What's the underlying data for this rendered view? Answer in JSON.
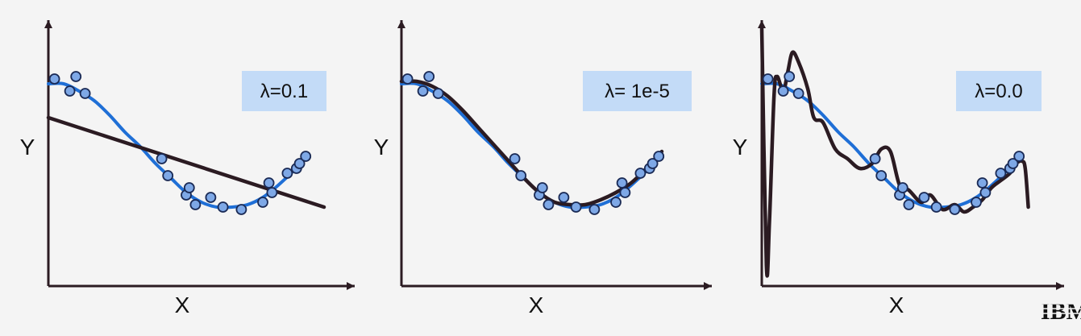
{
  "colors": {
    "background": "#f4f4f4",
    "axis": "#2b1b22",
    "truth_curve": "#1f6fd6",
    "fit_curve": "#2b1b22",
    "point_fill": "#7ea8e6",
    "point_stroke": "#1a2a55",
    "label_box": "#c3dbf7"
  },
  "chart_data": [
    {
      "type": "scatter",
      "title": "",
      "annotation": "λ=0.1",
      "xlabel": "X",
      "ylabel": "Y",
      "xlim": [
        0,
        1
      ],
      "ylim": [
        0,
        1
      ],
      "grid": false,
      "points": {
        "x": [
          0.02,
          0.09,
          0.07,
          0.12,
          0.37,
          0.39,
          0.45,
          0.46,
          0.48,
          0.53,
          0.57,
          0.63,
          0.7,
          0.72,
          0.73,
          0.78,
          0.81,
          0.82,
          0.84
        ],
        "y": [
          0.79,
          0.8,
          0.74,
          0.73,
          0.46,
          0.39,
          0.31,
          0.34,
          0.27,
          0.3,
          0.26,
          0.25,
          0.28,
          0.36,
          0.32,
          0.4,
          0.42,
          0.44,
          0.47
        ]
      },
      "series": [
        {
          "role": "underlying",
          "x": [
            0,
            0.05,
            0.1,
            0.15,
            0.2,
            0.25,
            0.3,
            0.35,
            0.4,
            0.45,
            0.5,
            0.55,
            0.6,
            0.65,
            0.7,
            0.75,
            0.8,
            0.85
          ],
          "y": [
            0.77,
            0.77,
            0.74,
            0.7,
            0.64,
            0.57,
            0.51,
            0.44,
            0.38,
            0.32,
            0.28,
            0.26,
            0.26,
            0.27,
            0.3,
            0.35,
            0.41,
            0.48
          ]
        },
        {
          "role": "fit",
          "x": [
            0,
            0.9
          ],
          "y": [
            0.63,
            0.26
          ]
        }
      ]
    },
    {
      "type": "scatter",
      "title": "",
      "annotation": "λ= 1e-5",
      "xlabel": "X",
      "ylabel": "Y",
      "xlim": [
        0,
        1
      ],
      "ylim": [
        0,
        1
      ],
      "grid": false,
      "points": {
        "x": [
          0.02,
          0.09,
          0.07,
          0.12,
          0.37,
          0.39,
          0.45,
          0.46,
          0.48,
          0.53,
          0.57,
          0.63,
          0.7,
          0.72,
          0.73,
          0.78,
          0.81,
          0.82,
          0.84
        ],
        "y": [
          0.79,
          0.8,
          0.74,
          0.73,
          0.46,
          0.39,
          0.31,
          0.34,
          0.27,
          0.3,
          0.26,
          0.25,
          0.28,
          0.36,
          0.32,
          0.4,
          0.42,
          0.44,
          0.47
        ]
      },
      "series": [
        {
          "role": "underlying",
          "x": [
            0,
            0.05,
            0.1,
            0.15,
            0.2,
            0.25,
            0.3,
            0.35,
            0.4,
            0.45,
            0.5,
            0.55,
            0.6,
            0.65,
            0.7,
            0.75,
            0.8,
            0.85
          ],
          "y": [
            0.77,
            0.77,
            0.74,
            0.7,
            0.64,
            0.57,
            0.51,
            0.44,
            0.38,
            0.32,
            0.28,
            0.26,
            0.26,
            0.27,
            0.3,
            0.35,
            0.41,
            0.48
          ]
        },
        {
          "role": "fit",
          "x": [
            0,
            0.05,
            0.1,
            0.15,
            0.2,
            0.25,
            0.3,
            0.35,
            0.4,
            0.45,
            0.5,
            0.55,
            0.6,
            0.65,
            0.7,
            0.75,
            0.8,
            0.85
          ],
          "y": [
            0.78,
            0.78,
            0.76,
            0.72,
            0.66,
            0.59,
            0.52,
            0.45,
            0.38,
            0.32,
            0.28,
            0.27,
            0.27,
            0.29,
            0.32,
            0.36,
            0.42,
            0.49
          ]
        }
      ]
    },
    {
      "type": "scatter",
      "title": "",
      "annotation": "λ=0.0",
      "xlabel": "X",
      "ylabel": "Y",
      "xlim": [
        0,
        1
      ],
      "ylim": [
        0,
        1
      ],
      "grid": false,
      "points": {
        "x": [
          0.02,
          0.09,
          0.07,
          0.12,
          0.37,
          0.39,
          0.45,
          0.46,
          0.48,
          0.53,
          0.57,
          0.63,
          0.7,
          0.72,
          0.73,
          0.78,
          0.81,
          0.82,
          0.84
        ],
        "y": [
          0.79,
          0.8,
          0.74,
          0.73,
          0.46,
          0.39,
          0.31,
          0.34,
          0.27,
          0.3,
          0.26,
          0.25,
          0.28,
          0.36,
          0.32,
          0.4,
          0.42,
          0.44,
          0.47
        ]
      },
      "series": [
        {
          "role": "underlying",
          "x": [
            0,
            0.05,
            0.1,
            0.15,
            0.2,
            0.25,
            0.3,
            0.35,
            0.4,
            0.45,
            0.5,
            0.55,
            0.6,
            0.65,
            0.7,
            0.75,
            0.8,
            0.85
          ],
          "y": [
            0.77,
            0.77,
            0.74,
            0.7,
            0.64,
            0.57,
            0.51,
            0.44,
            0.38,
            0.32,
            0.28,
            0.26,
            0.26,
            0.27,
            0.3,
            0.35,
            0.41,
            0.48
          ]
        },
        {
          "role": "fit",
          "x": [
            0,
            0.015,
            0.025,
            0.04,
            0.05,
            0.07,
            0.085,
            0.1,
            0.12,
            0.15,
            0.17,
            0.2,
            0.24,
            0.28,
            0.32,
            0.36,
            0.39,
            0.42,
            0.45,
            0.48,
            0.52,
            0.55,
            0.59,
            0.63,
            0.66,
            0.69,
            0.72,
            0.75,
            0.78,
            0.81,
            0.83,
            0.85,
            0.86,
            0.87
          ],
          "y": [
            1.0,
            0.02,
            0.2,
            0.72,
            0.8,
            0.74,
            0.82,
            0.9,
            0.86,
            0.75,
            0.63,
            0.61,
            0.5,
            0.46,
            0.42,
            0.44,
            0.5,
            0.49,
            0.35,
            0.33,
            0.28,
            0.31,
            0.25,
            0.27,
            0.24,
            0.26,
            0.29,
            0.34,
            0.37,
            0.4,
            0.44,
            0.45,
            0.42,
            0.26
          ]
        }
      ]
    }
  ],
  "footer": {
    "logo_text": "IBM"
  }
}
